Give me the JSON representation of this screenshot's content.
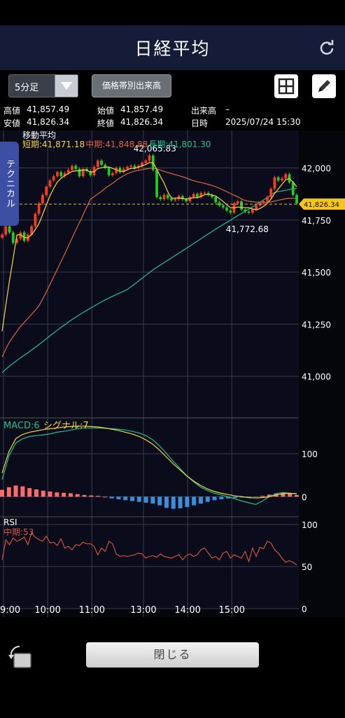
{
  "header": {
    "title": "日経平均"
  },
  "toolbar": {
    "interval_label": "5分足",
    "volume_button": "価格帯別出来高"
  },
  "quote": {
    "high_label": "高値",
    "high": "41,857.49",
    "open_label": "始値",
    "open": "41,857.49",
    "volume_label": "出来高",
    "volume": "–",
    "low_label": "安値",
    "low": "41,826.34",
    "close_label": "終値",
    "close": "41,826.34",
    "date_label": "日時",
    "date": "2025/07/24 15:30"
  },
  "tech_tab": "テクニカル",
  "close_button": "閉じる",
  "colors": {
    "up": "#ff3b1f",
    "down": "#19d419",
    "short": "#f5d742",
    "mid": "#e0643c",
    "long": "#1fc28c",
    "macd": "#1fc28c",
    "signal": "#f5d742",
    "hist_pos": "#ff6b6b",
    "hist_neg": "#3a8fd8",
    "rsi": "#e0553c",
    "bg": "#000000"
  },
  "chart_data": [
    {
      "type": "candlestick",
      "title": "移動平均",
      "legend": [
        "短期:41,871.18",
        "中期:41,848.88",
        "長期:41,801.30"
      ],
      "ylim": [
        40800,
        42180
      ],
      "yticks": [
        "42,000",
        "41,750",
        "41,500",
        "41,250",
        "41,000"
      ],
      "ytick_values": [
        42000,
        41750,
        41500,
        41250,
        41000
      ],
      "current_price_label": "41,826.34",
      "current_price": 41826.34,
      "high_annotation": "42,065.83",
      "high_annotation_value": 42065.83,
      "high_annotation_index": 41,
      "low_annotation": "41,772.68",
      "low_annotation_value": 41772.68,
      "low_annotation_index": 68,
      "closes": [
        41680,
        41720,
        41690,
        41640,
        41660,
        41690,
        41650,
        41680,
        41720,
        41780,
        41830,
        41870,
        41910,
        41940,
        41960,
        41980,
        41960,
        41975,
        41990,
        42010,
        41995,
        41960,
        41995,
        41985,
        41965,
        42005,
        42035,
        42015,
        42000,
        41965,
        41975,
        42000,
        41980,
        41995,
        42005,
        42010,
        42000,
        42010,
        42025,
        42035,
        42060,
        41990,
        41860,
        41850,
        41870,
        41855,
        41845,
        41850,
        41865,
        41850,
        41840,
        41860,
        41875,
        41860,
        41880,
        41880,
        41870,
        41860,
        41835,
        41820,
        41810,
        41795,
        41785,
        41830,
        41840,
        41800,
        41790,
        41785,
        41800,
        41820,
        41830,
        41840,
        41860,
        41900,
        41955,
        41940,
        41950,
        41970,
        41930,
        41870,
        41830
      ]
    },
    {
      "type": "line",
      "title": "MACD",
      "legend": [
        "MACD:6",
        "シグナル:7"
      ],
      "yticks": [
        "100",
        "0"
      ],
      "ytick_values": [
        100,
        0
      ],
      "ylim": [
        -45,
        180
      ],
      "macd": [
        40,
        95,
        125,
        135,
        140,
        142,
        144,
        146,
        150,
        152,
        155,
        158,
        160,
        160,
        160,
        159,
        158,
        157,
        155,
        152,
        148,
        142,
        132,
        118,
        100,
        82,
        65,
        48,
        34,
        22,
        14,
        8,
        4,
        0,
        -5,
        -10,
        -14,
        -18,
        -10,
        0,
        7,
        10,
        8,
        6
      ],
      "signal": [
        55,
        105,
        135,
        145,
        150,
        153,
        156,
        158,
        160,
        162,
        163,
        164,
        164,
        163,
        162,
        160,
        157,
        154,
        150,
        146,
        140,
        132,
        122,
        108,
        92,
        76,
        62,
        48,
        36,
        26,
        18,
        12,
        8,
        5,
        2,
        0,
        -2,
        -3,
        -2,
        0,
        4,
        7,
        8,
        7
      ],
      "histogram": [
        16,
        22,
        26,
        24,
        20,
        17,
        14,
        12,
        10,
        9,
        8,
        6,
        4,
        3,
        2,
        0,
        -4,
        -6,
        -8,
        -10,
        -12,
        -14,
        -16,
        -20,
        -26,
        -28,
        -27,
        -24,
        -20,
        -16,
        -12,
        -8,
        -6,
        -4,
        -3,
        -2,
        -2,
        -1,
        2,
        5,
        8,
        10,
        8,
        4
      ]
    },
    {
      "type": "line",
      "title": "RSI",
      "legend": [
        "中期:53"
      ],
      "yticks": [
        "100",
        "50",
        "0"
      ],
      "ytick_values": [
        100,
        50,
        0
      ],
      "ylim": [
        0,
        100
      ],
      "values": [
        58,
        82,
        76,
        84,
        80,
        82,
        85,
        76,
        90,
        85,
        82,
        80,
        86,
        78,
        79,
        75,
        83,
        72,
        74,
        70,
        76,
        75,
        79,
        77,
        77,
        74,
        64,
        72,
        68,
        80,
        77,
        65,
        62,
        63,
        62,
        63,
        64,
        66,
        65,
        60,
        62,
        63,
        61,
        65,
        62,
        61,
        60,
        62,
        64,
        58,
        63,
        65,
        62,
        64,
        70,
        72,
        66,
        60,
        62,
        58,
        66,
        68,
        60,
        64,
        62,
        60,
        68,
        56,
        72,
        62,
        73,
        71,
        80,
        78,
        70,
        66,
        60,
        55,
        57,
        55,
        52
      ]
    }
  ],
  "x_axis": [
    "9:00",
    "10:00",
    "11:00",
    "13:00",
    "14:00",
    "15:00"
  ],
  "x_axis_index": [
    0,
    12,
    24,
    38,
    50,
    62
  ]
}
